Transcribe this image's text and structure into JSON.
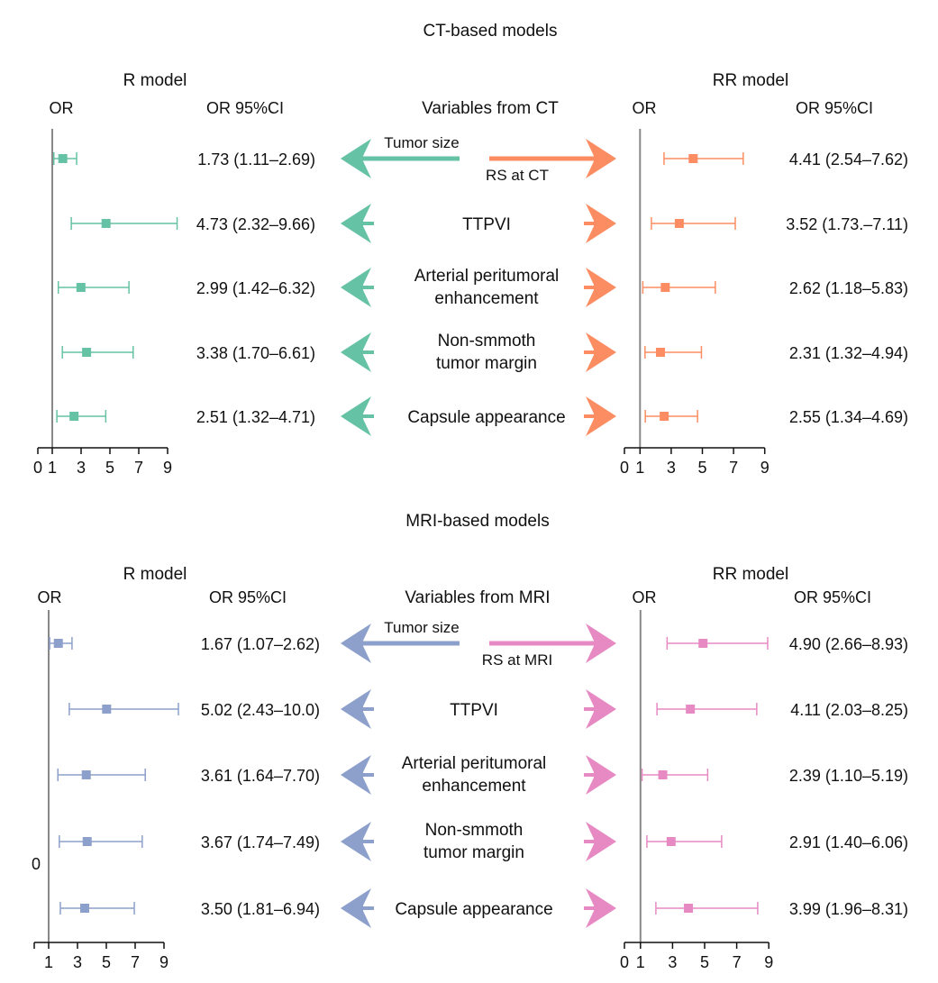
{
  "chart_data": [
    {
      "type": "forest",
      "title": "CT-based models",
      "variables_header": "Variables from CT",
      "variables": [
        "Tumor size",
        "RS at CT",
        "TTPVI",
        "Arterial peritumoral enhancement",
        "Non-smmoth tumor margin",
        "Capsule appearance"
      ],
      "panels": [
        {
          "name": "R model",
          "or_label": "OR",
          "ci_label": "OR 95%CI",
          "color": "#66c2a5",
          "xlim": [
            0,
            9
          ],
          "tick_labels": [
            "0",
            "1",
            "3",
            "5",
            "7",
            "9"
          ],
          "ticks": [
            0,
            1,
            3,
            5,
            7,
            9
          ],
          "ref_line": 1,
          "rows": [
            {
              "variable": "Tumor size",
              "or": 1.73,
              "lo": 1.11,
              "hi": 2.69,
              "label": "1.73 (1.11–2.69)"
            },
            {
              "variable": "TTPVI",
              "or": 4.73,
              "lo": 2.32,
              "hi": 9.66,
              "label": "4.73 (2.32–9.66)"
            },
            {
              "variable": "Arterial peritumoral enhancement",
              "or": 2.99,
              "lo": 1.42,
              "hi": 6.32,
              "label": "2.99 (1.42–6.32)"
            },
            {
              "variable": "Non-smmoth tumor margin",
              "or": 3.38,
              "lo": 1.7,
              "hi": 6.61,
              "label": "3.38 (1.70–6.61)"
            },
            {
              "variable": "Capsule appearance",
              "or": 2.51,
              "lo": 1.32,
              "hi": 4.71,
              "label": "2.51 (1.32–4.71)"
            }
          ]
        },
        {
          "name": "RR model",
          "or_label": "OR",
          "ci_label": "OR 95%CI",
          "color": "#fc8d62",
          "xlim": [
            0,
            9
          ],
          "tick_labels": [
            "0",
            "1",
            "3",
            "5",
            "7",
            "9"
          ],
          "ticks": [
            0,
            1,
            3,
            5,
            7,
            9
          ],
          "ref_line": 1,
          "rows": [
            {
              "variable": "RS at CT",
              "or": 4.41,
              "lo": 2.54,
              "hi": 7.62,
              "label": "4.41 (2.54–7.62)"
            },
            {
              "variable": "TTPVI",
              "or": 3.52,
              "lo": 1.73,
              "hi": 7.11,
              "label": "3.52 (1.73.–7.11)"
            },
            {
              "variable": "Arterial peritumoral enhancement",
              "or": 2.62,
              "lo": 1.18,
              "hi": 5.83,
              "label": "2.62 (1.18–5.83)"
            },
            {
              "variable": "Non-smmoth tumor margin",
              "or": 2.31,
              "lo": 1.32,
              "hi": 4.94,
              "label": "2.31 (1.32–4.94)"
            },
            {
              "variable": "Capsule appearance",
              "or": 2.55,
              "lo": 1.34,
              "hi": 4.69,
              "label": "2.55 (1.34–4.69)"
            }
          ]
        }
      ]
    },
    {
      "type": "forest",
      "title": "MRI-based models",
      "variables_header": "Variables from MRI",
      "variables": [
        "Tumor size",
        "RS at MRI",
        "TTPVI",
        "Arterial peritumoral enhancement",
        "Non-smmoth tumor margin",
        "Capsule appearance"
      ],
      "stray_label": "0",
      "panels": [
        {
          "name": "R model",
          "or_label": "OR",
          "ci_label": "OR 95%CI",
          "color": "#8da0cb",
          "xlim": [
            0,
            9
          ],
          "tick_labels": [
            "",
            "1",
            "3",
            "5",
            "7",
            "9"
          ],
          "ticks": [
            0,
            1,
            3,
            5,
            7,
            9
          ],
          "ref_line": 1,
          "rows": [
            {
              "variable": "Tumor size",
              "or": 1.67,
              "lo": 1.07,
              "hi": 2.62,
              "label": "1.67 (1.07–2.62)"
            },
            {
              "variable": "TTPVI",
              "or": 5.02,
              "lo": 2.43,
              "hi": 10.0,
              "label": "5.02 (2.43–10.0)"
            },
            {
              "variable": "Arterial peritumoral enhancement",
              "or": 3.61,
              "lo": 1.64,
              "hi": 7.7,
              "label": "3.61 (1.64–7.70)"
            },
            {
              "variable": "Non-smmoth tumor margin",
              "or": 3.67,
              "lo": 1.74,
              "hi": 7.49,
              "label": "3.67 (1.74–7.49)"
            },
            {
              "variable": "Capsule appearance",
              "or": 3.5,
              "lo": 1.81,
              "hi": 6.94,
              "label": "3.50 (1.81–6.94)"
            }
          ]
        },
        {
          "name": "RR model",
          "or_label": "OR",
          "ci_label": "OR 95%CI",
          "color": "#e78ac3",
          "xlim": [
            0,
            9
          ],
          "tick_labels": [
            "0",
            "1",
            "3",
            "5",
            "7",
            "9"
          ],
          "ticks": [
            0,
            1,
            3,
            5,
            7,
            9
          ],
          "ref_line": 1,
          "rows": [
            {
              "variable": "RS at MRI",
              "or": 4.9,
              "lo": 2.66,
              "hi": 8.93,
              "label": "4.90 (2.66–8.93)"
            },
            {
              "variable": "TTPVI",
              "or": 4.11,
              "lo": 2.03,
              "hi": 8.25,
              "label": "4.11 (2.03–8.25)"
            },
            {
              "variable": "Arterial peritumoral enhancement",
              "or": 2.39,
              "lo": 1.1,
              "hi": 5.19,
              "label": "2.39 (1.10–5.19)"
            },
            {
              "variable": "Non-smmoth tumor margin",
              "or": 2.91,
              "lo": 1.4,
              "hi": 6.06,
              "label": "2.91 (1.40–6.06)"
            },
            {
              "variable": "Capsule appearance",
              "or": 3.99,
              "lo": 1.96,
              "hi": 8.31,
              "label": "3.99 (1.96–8.31)"
            }
          ]
        }
      ]
    }
  ]
}
